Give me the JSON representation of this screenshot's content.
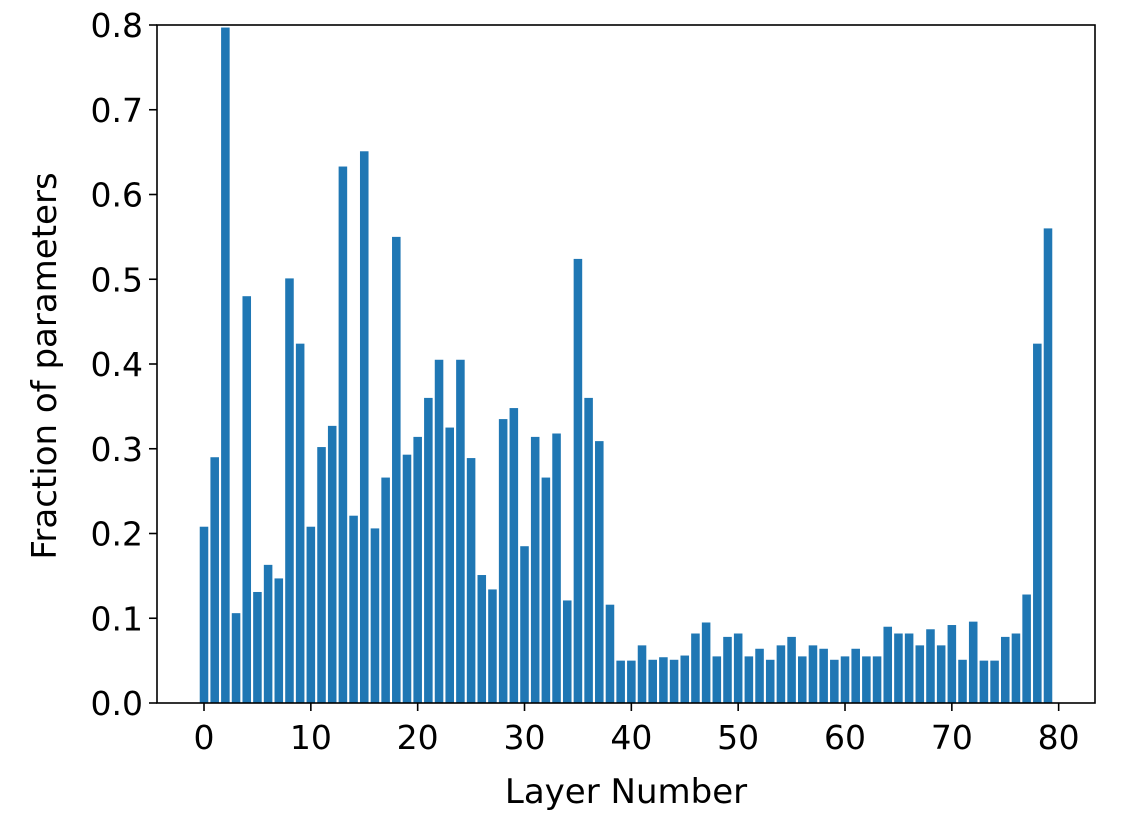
{
  "chart_data": {
    "type": "bar",
    "title": "",
    "xlabel": "Layer Number",
    "ylabel": "Fraction of parameters",
    "x": [
      0,
      1,
      2,
      3,
      4,
      5,
      6,
      7,
      8,
      9,
      10,
      11,
      12,
      13,
      14,
      15,
      16,
      17,
      18,
      19,
      20,
      21,
      22,
      23,
      24,
      25,
      26,
      27,
      28,
      29,
      30,
      31,
      32,
      33,
      34,
      35,
      36,
      37,
      38,
      39,
      40,
      41,
      42,
      43,
      44,
      45,
      46,
      47,
      48,
      49,
      50,
      51,
      52,
      53,
      54,
      55,
      56,
      57,
      58,
      59,
      60,
      61,
      62,
      63,
      64,
      65,
      66,
      67,
      68,
      69,
      70,
      71,
      72,
      73,
      74,
      75,
      76,
      77,
      78,
      79
    ],
    "values": [
      0.208,
      0.29,
      0.797,
      0.106,
      0.48,
      0.131,
      0.163,
      0.147,
      0.501,
      0.424,
      0.208,
      0.302,
      0.327,
      0.633,
      0.221,
      0.651,
      0.206,
      0.266,
      0.55,
      0.293,
      0.314,
      0.36,
      0.405,
      0.325,
      0.405,
      0.289,
      0.151,
      0.134,
      0.335,
      0.348,
      0.185,
      0.314,
      0.266,
      0.318,
      0.121,
      0.524,
      0.36,
      0.309,
      0.116,
      0.05,
      0.05,
      0.068,
      0.051,
      0.054,
      0.051,
      0.056,
      0.082,
      0.095,
      0.055,
      0.078,
      0.082,
      0.055,
      0.064,
      0.051,
      0.068,
      0.078,
      0.055,
      0.068,
      0.064,
      0.051,
      0.055,
      0.064,
      0.055,
      0.055,
      0.09,
      0.082,
      0.082,
      0.068,
      0.087,
      0.068,
      0.092,
      0.051,
      0.096,
      0.05,
      0.05,
      0.078,
      0.082,
      0.128,
      0.424,
      0.56
    ],
    "xlim": [
      -4.4,
      83.4
    ],
    "ylim": [
      0,
      0.8
    ],
    "xticks": [
      "0",
      "10",
      "20",
      "30",
      "40",
      "50",
      "60",
      "70",
      "80"
    ],
    "yticks": [
      "0.0",
      "0.1",
      "0.2",
      "0.3",
      "0.4",
      "0.5",
      "0.6",
      "0.7",
      "0.8"
    ],
    "grid": false,
    "bar_color": "#1f77b4"
  }
}
